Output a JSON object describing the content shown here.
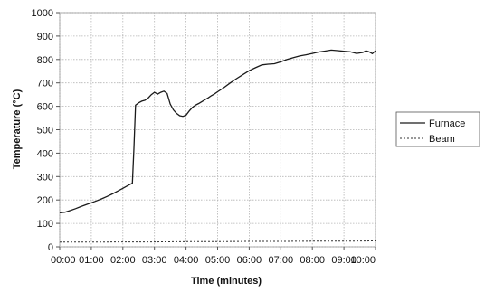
{
  "chart_data": {
    "type": "line",
    "xlabel": "Time (minutes)",
    "ylabel": "Temperature (°C)",
    "xlim": [
      0,
      600
    ],
    "ylim": [
      0,
      1000
    ],
    "x_ticks": [
      {
        "value": 0,
        "label": "00:00"
      },
      {
        "value": 60,
        "label": "01:00"
      },
      {
        "value": 120,
        "label": "02:00"
      },
      {
        "value": 180,
        "label": "03:00"
      },
      {
        "value": 240,
        "label": "04:00"
      },
      {
        "value": 300,
        "label": "05:00"
      },
      {
        "value": 360,
        "label": "06:00"
      },
      {
        "value": 420,
        "label": "07:00"
      },
      {
        "value": 480,
        "label": "08:00"
      },
      {
        "value": 540,
        "label": "09:00"
      },
      {
        "value": 600,
        "label": "10:00"
      }
    ],
    "y_ticks": [
      {
        "value": 0,
        "label": "0"
      },
      {
        "value": 100,
        "label": "100"
      },
      {
        "value": 200,
        "label": "200"
      },
      {
        "value": 300,
        "label": "300"
      },
      {
        "value": 400,
        "label": "400"
      },
      {
        "value": 500,
        "label": "500"
      },
      {
        "value": 600,
        "label": "600"
      },
      {
        "value": 700,
        "label": "700"
      },
      {
        "value": 800,
        "label": "800"
      },
      {
        "value": 900,
        "label": "900"
      },
      {
        "value": 1000,
        "label": "1000"
      }
    ],
    "grid": true,
    "legend_position": "right",
    "series": [
      {
        "name": "Furnace",
        "style": "solid",
        "color": "#1a1a1a",
        "x": [
          0,
          10,
          20,
          30,
          40,
          50,
          60,
          70,
          80,
          90,
          100,
          110,
          120,
          130,
          138,
          141,
          144,
          150,
          156,
          162,
          168,
          174,
          180,
          186,
          192,
          198,
          204,
          210,
          216,
          222,
          228,
          234,
          240,
          246,
          252,
          258,
          264,
          270,
          276,
          282,
          288,
          294,
          300,
          312,
          324,
          336,
          348,
          360,
          372,
          384,
          396,
          408,
          420,
          432,
          444,
          456,
          468,
          480,
          492,
          504,
          516,
          528,
          540,
          552,
          564,
          576,
          582,
          588,
          594,
          600
        ],
        "y": [
          145,
          148,
          155,
          163,
          172,
          180,
          188,
          196,
          205,
          215,
          226,
          238,
          250,
          262,
          272,
          420,
          605,
          615,
          622,
          626,
          635,
          650,
          660,
          652,
          660,
          665,
          655,
          610,
          585,
          570,
          560,
          557,
          562,
          580,
          595,
          605,
          612,
          620,
          628,
          636,
          645,
          653,
          662,
          680,
          700,
          718,
          735,
          752,
          765,
          777,
          780,
          782,
          790,
          800,
          808,
          815,
          820,
          826,
          832,
          836,
          840,
          838,
          835,
          833,
          826,
          830,
          837,
          833,
          825,
          837
        ]
      },
      {
        "name": "Beam",
        "style": "dashed",
        "color": "#333333",
        "x": [
          0,
          60,
          120,
          180,
          240,
          300,
          360,
          420,
          480,
          540,
          600
        ],
        "y": [
          20,
          20,
          21,
          21,
          22,
          22,
          23,
          23,
          24,
          24,
          25
        ]
      }
    ]
  }
}
